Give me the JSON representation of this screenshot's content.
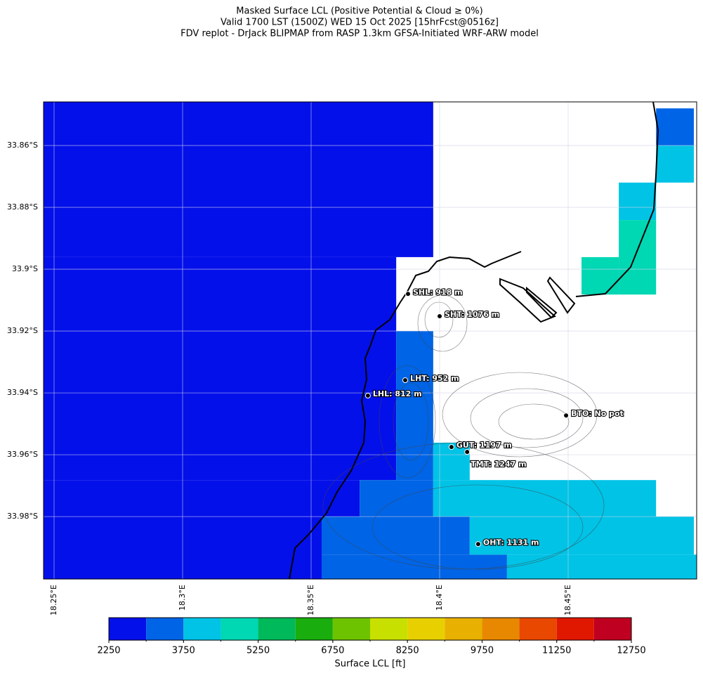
{
  "chart_data": {
    "type": "map",
    "title": [
      "Masked Surface LCL (Positive Potential & Cloud ≥ 0%)",
      "Valid 1700 LST (1500Z) WED 15 Oct 2025 [15hrFcst@0516z]",
      "FDV replot - DrJack BLIPMAP from RASP 1.3km GFSA-Initiated WRF-ARW model"
    ],
    "xlim": [
      18.2459,
      18.5
    ],
    "ylim": [
      33.8459,
      34.0002
    ],
    "xticks": [
      {
        "value": 18.25,
        "label": "18.25°E"
      },
      {
        "value": 18.3,
        "label": "18.3°E"
      },
      {
        "value": 18.35,
        "label": "18.35°E"
      },
      {
        "value": 18.4,
        "label": "18.4°E"
      },
      {
        "value": 18.45,
        "label": "18.45°E"
      }
    ],
    "yticks": [
      {
        "value": 33.86,
        "label": "33.86°S"
      },
      {
        "value": 33.88,
        "label": "33.88°S"
      },
      {
        "value": 33.9,
        "label": "33.9°S"
      },
      {
        "value": 33.92,
        "label": "33.92°S"
      },
      {
        "value": 33.94,
        "label": "33.94°S"
      },
      {
        "value": 33.96,
        "label": "33.96°S"
      },
      {
        "value": 33.98,
        "label": "33.98°S"
      }
    ],
    "grid": true,
    "cells": [
      {
        "lon": [
          18.2459,
          18.3975
        ],
        "lat": [
          33.8459,
          33.8961
        ],
        "value": 2600
      },
      {
        "lon": [
          18.2459,
          18.3831
        ],
        "lat": [
          33.8961,
          33.9682
        ],
        "value": 2600
      },
      {
        "lon": [
          18.2459,
          18.3689
        ],
        "lat": [
          33.9682,
          33.98
        ],
        "value": 2600
      },
      {
        "lon": [
          18.2459,
          18.3541
        ],
        "lat": [
          33.98,
          34.0002
        ],
        "value": 2600
      },
      {
        "lon": [
          18.3831,
          18.3975
        ],
        "lat": [
          33.92,
          33.9682
        ],
        "value": 3400
      },
      {
        "lon": [
          18.3689,
          18.3975
        ],
        "lat": [
          33.9682,
          33.98
        ],
        "value": 3400
      },
      {
        "lon": [
          18.3541,
          18.4117
        ],
        "lat": [
          33.98,
          33.9923
        ],
        "value": 3400
      },
      {
        "lon": [
          18.3541,
          18.4262
        ],
        "lat": [
          33.9923,
          34.0002
        ],
        "value": 3400
      },
      {
        "lon": [
          18.4842,
          18.4989
        ],
        "lat": [
          33.848,
          33.86
        ],
        "value": 3400
      },
      {
        "lon": [
          18.3975,
          18.4117
        ],
        "lat": [
          33.9561,
          33.9682
        ],
        "value": 4100
      },
      {
        "lon": [
          18.3975,
          18.4842
        ],
        "lat": [
          33.9682,
          33.98
        ],
        "value": 4100
      },
      {
        "lon": [
          18.4117,
          18.4989
        ],
        "lat": [
          33.98,
          33.9923
        ],
        "value": 4100
      },
      {
        "lon": [
          18.4262,
          18.5
        ],
        "lat": [
          33.9923,
          34.0002
        ],
        "value": 4100
      },
      {
        "lon": [
          18.4842,
          18.4989
        ],
        "lat": [
          33.86,
          33.872
        ],
        "value": 4100
      },
      {
        "lon": [
          18.4697,
          18.4842
        ],
        "lat": [
          33.872,
          33.8841
        ],
        "value": 4100
      },
      {
        "lon": [
          18.4697,
          18.4842
        ],
        "lat": [
          33.8841,
          33.9082
        ],
        "value": 4900
      },
      {
        "lon": [
          18.4552,
          18.4697
        ],
        "lat": [
          33.8961,
          33.9082
        ],
        "value": 4900
      }
    ],
    "stations": [
      {
        "label": "SHL: 918 m",
        "lon": 18.3877,
        "lat": 33.908
      },
      {
        "label": "SHT: 1076 m",
        "lon": 18.4,
        "lat": 33.9152
      },
      {
        "label": "LHT: 952 m",
        "lon": 18.3866,
        "lat": 33.9359
      },
      {
        "label": "LHL: 812 m",
        "lon": 18.3721,
        "lat": 33.9409
      },
      {
        "label": "BTO: No pot",
        "lon": 18.4492,
        "lat": 33.9473
      },
      {
        "label": "GUT: 1197 m",
        "lon": 18.4046,
        "lat": 33.9575
      },
      {
        "label": "TMT: 1247 m",
        "lon": 18.4107,
        "lat": 33.9591
      },
      {
        "label": "OHT: 1131 m",
        "lon": 18.415,
        "lat": 33.9889
      }
    ],
    "colorbar": {
      "label": "Surface LCL [ft]",
      "levels": [
        2250,
        3000,
        3750,
        4500,
        5250,
        6000,
        6750,
        7500,
        8250,
        9000,
        9750,
        10500,
        11250,
        12000,
        12750
      ],
      "colors": [
        "#0410ea",
        "#0064e6",
        "#00c3e6",
        "#00d7b3",
        "#00b95a",
        "#19ad0e",
        "#6ec300",
        "#c8e000",
        "#e8d000",
        "#e8b000",
        "#e88800",
        "#e84800",
        "#e01800",
        "#c00020"
      ],
      "ticks": [
        2250,
        3750,
        5250,
        6750,
        8250,
        9750,
        11250,
        12750
      ]
    }
  }
}
